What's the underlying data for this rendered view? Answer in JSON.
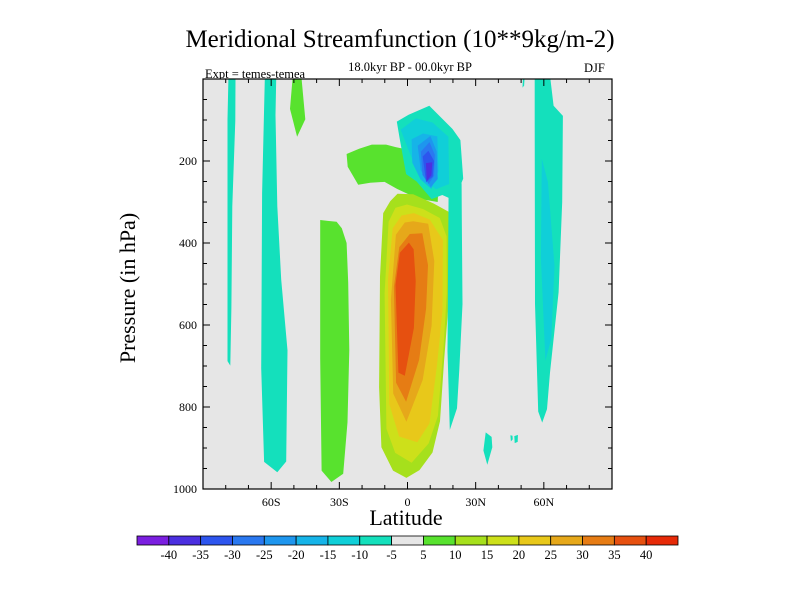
{
  "title": "Meridional Streamfunction (10**9kg/m-2)",
  "subtitle": "18.0kyr BP - 00.0kyr BP",
  "experiment_label": "Expt = temes-temea",
  "season": "DJF",
  "chart_data": {
    "type": "heatmap",
    "title": "Meridional Streamfunction (10**9kg/m-2)",
    "xlabel": "Latitude",
    "ylabel": "Pressure (in hPa)",
    "xlim": [
      -90,
      90
    ],
    "ylim": [
      1000,
      0
    ],
    "xticks": [
      {
        "value": -60,
        "label": "60S"
      },
      {
        "value": -30,
        "label": "30S"
      },
      {
        "value": 0,
        "label": "0"
      },
      {
        "value": 30,
        "label": "30N"
      },
      {
        "value": 60,
        "label": "60N"
      }
    ],
    "yticks": [
      {
        "value": 200,
        "label": "200"
      },
      {
        "value": 400,
        "label": "400"
      },
      {
        "value": 600,
        "label": "600"
      },
      {
        "value": 800,
        "label": "800"
      },
      {
        "value": 1000,
        "label": "1000"
      }
    ],
    "background_color": "#e6e6e6",
    "colorbar": {
      "labels": [
        "-40",
        "-35",
        "-30",
        "-25",
        "-20",
        "-15",
        "-10",
        "-5",
        "5",
        "10",
        "15",
        "20",
        "25",
        "30",
        "35",
        "40"
      ],
      "colors": [
        "#7b1fe0",
        "#4b2fe0",
        "#2d55ee",
        "#2a78f0",
        "#1e96ee",
        "#16b4e8",
        "#10cfd8",
        "#14e0bc",
        "#e6e6e6",
        "#58e22e",
        "#a6e01c",
        "#cde01a",
        "#e8c81a",
        "#e6a81a",
        "#e67c14",
        "#e65010",
        "#e62a08"
      ]
    },
    "regions": [
      {
        "name": "sh-polar-thin-band",
        "level": -5,
        "lat": [
          -78.8,
          -75.7,
          -75.8,
          -77.1,
          -77.5,
          -78.0,
          -79.2,
          -79.2
        ],
        "p": [
          0,
          0,
          102,
          310,
          557,
          699,
          688,
          98
        ]
      },
      {
        "name": "sh-highlat-band",
        "level": -5,
        "lat": [
          -62.8,
          -57.8,
          -58.1,
          -57.3,
          -55.6,
          -52.8,
          -53.4,
          -57.3,
          -63.1,
          -64.4,
          -64.0
        ],
        "p": [
          0,
          0,
          88,
          310,
          489,
          662,
          933,
          959,
          934,
          705,
          278
        ]
      },
      {
        "name": "sh-highlat-upper-streak",
        "level": 5,
        "lat": [
          -50.6,
          -46.6,
          -45.0,
          -48.6,
          -51.7
        ],
        "p": [
          0,
          0,
          98,
          141,
          73
        ]
      },
      {
        "name": "sh-subtropical-band",
        "level": 5,
        "lat": [
          -38.4,
          -35.1,
          -31.2,
          -28.9,
          -26.8,
          -26.1,
          -25.6,
          -26.4,
          -28.3,
          -33.5,
          -37.8,
          -38.4
        ],
        "p": [
          344,
          346,
          348,
          364,
          400,
          496,
          661,
          837,
          963,
          983,
          955,
          683
        ]
      },
      {
        "name": "upper-troposphere-lobe",
        "level": 5,
        "lat": [
          -26.8,
          -21.3,
          -15.7,
          -9.4,
          -5.2,
          -1.0,
          4.7,
          11.7,
          14.0,
          13.3,
          7.8,
          0.8,
          -4.6,
          -10.1,
          -16.4,
          -21.7,
          -26.3
        ],
        "p": [
          183,
          170,
          160,
          160,
          166,
          171,
          172,
          180,
          216,
          300,
          295,
          282,
          268,
          251,
          253,
          258,
          214
        ]
      },
      {
        "name": "equatorial-cell",
        "level": 10,
        "lat": [
          -10.7,
          -7.6,
          -4.4,
          2.5,
          11.6,
          18.5,
          20.5,
          20.4,
          17.9,
          16.1,
          14.3,
          11.0,
          5.3,
          -0.5,
          -6.4,
          -11.5,
          -12.5,
          -12.1
        ],
        "p": [
          327,
          298,
          280,
          281,
          304,
          325,
          358,
          433,
          560,
          686,
          835,
          911,
          954,
          973,
          955,
          898,
          752,
          482
        ]
      },
      {
        "name": "equatorial-cell",
        "level": 15,
        "lat": [
          -8.3,
          -5.3,
          -0.2,
          6.8,
          14.2,
          17.2,
          17.3,
          15.9,
          13.4,
          9.3,
          1.8,
          -5.4,
          -9.3,
          -10.1
        ],
        "p": [
          348,
          314,
          306,
          317,
          339,
          384,
          521,
          652,
          822,
          889,
          936,
          912,
          853,
          522
        ]
      },
      {
        "name": "equatorial-cell",
        "level": 20,
        "lat": [
          -6.5,
          -2.6,
          2.8,
          9.8,
          15.6,
          15.4,
          13.0,
          9.7,
          4.3,
          -3.7,
          -8.0,
          -8.6
        ],
        "p": [
          364,
          333,
          327,
          343,
          393,
          565,
          698,
          840,
          886,
          872,
          793,
          488
        ]
      },
      {
        "name": "equatorial-cell",
        "level": 25,
        "lat": [
          -5.1,
          -1.2,
          2.5,
          9.1,
          11.8,
          10.6,
          6.7,
          -0.5,
          -6.3,
          -7.3
        ],
        "p": [
          380,
          350,
          347,
          353,
          444,
          602,
          734,
          836,
          767,
          538
        ]
      },
      {
        "name": "equatorial-cell",
        "level": 30,
        "lat": [
          -3.6,
          1.0,
          6.5,
          9.0,
          8.2,
          5.1,
          -0.6,
          -5.0,
          -6.0
        ],
        "p": [
          410,
          378,
          376,
          454,
          560,
          685,
          787,
          741,
          507
        ]
      },
      {
        "name": "equatorial-cell",
        "level": 35,
        "lat": [
          -3.4,
          0.6,
          2.7,
          3.6,
          2.8,
          -1.2,
          -4.0,
          -5.3
        ],
        "p": [
          424,
          399,
          415,
          493,
          607,
          724,
          716,
          502
        ]
      },
      {
        "name": "nh-upper-negative-cell",
        "level": -5,
        "lat": [
          -4.7,
          0.5,
          9.6,
          19.8,
          23.3,
          24.5,
          20.6,
          15.3,
          10.6,
          4.0,
          -0.6,
          -3.5
        ],
        "p": [
          104,
          87,
          65,
          122,
          149,
          243,
          296,
          283,
          293,
          250,
          232,
          143
        ]
      },
      {
        "name": "nh-upper-negative-cell",
        "level": -10,
        "lat": [
          -3.0,
          3.6,
          11.0,
          18.0,
          18.3,
          12.5,
          5.0,
          0.8
        ],
        "p": [
          124,
          96,
          106,
          141,
          256,
          269,
          234,
          178
        ]
      },
      {
        "name": "nh-upper-negative-cell",
        "level": -15,
        "lat": [
          1.8,
          6.8,
          13.1,
          13.6,
          10.5,
          5.7,
          2.1
        ],
        "p": [
          147,
          133,
          140,
          225,
          268,
          245,
          204
        ]
      },
      {
        "name": "nh-upper-negative-cell",
        "level": -20,
        "lat": [
          4.5,
          10.1,
          12.8,
          13.3,
          10.2,
          5.8
        ],
        "p": [
          163,
          139,
          176,
          244,
          264,
          222
        ]
      },
      {
        "name": "nh-upper-negative-cell",
        "level": -25,
        "lat": [
          5.9,
          9.7,
          12.0,
          11.7,
          9.3,
          6.6
        ],
        "p": [
          177,
          154,
          185,
          236,
          256,
          234
        ]
      },
      {
        "name": "nh-upper-negative-cell",
        "level": -30,
        "lat": [
          6.7,
          9.2,
          11.7,
          11.1,
          8.2
        ],
        "p": [
          189,
          175,
          200,
          238,
          252
        ]
      },
      {
        "name": "nh-upper-negative-cell",
        "level": -35,
        "lat": [
          8.1,
          10.9,
          10.5,
          8.5
        ],
        "p": [
          205,
          203,
          235,
          248
        ]
      },
      {
        "name": "nh-subtropical-band",
        "level": -5,
        "lat": [
          18.1,
          23.8,
          23.9,
          24.2,
          22.8,
          21.8,
          18.6,
          17.6
        ],
        "p": [
          268,
          254,
          338,
          549,
          709,
          803,
          856,
          664
        ]
      },
      {
        "name": "nh-small-patch",
        "level": -5,
        "lat": [
          34.4,
          37.0,
          37.3,
          35.1,
          33.4
        ],
        "p": [
          862,
          873,
          898,
          941,
          906
        ]
      },
      {
        "name": "nh-small-patch",
        "level": -5,
        "lat": [
          45.3,
          46.2,
          46.3,
          45.5
        ],
        "p": [
          869,
          870,
          879,
          884
        ]
      },
      {
        "name": "nh-small-patch",
        "level": -5,
        "lat": [
          47.0,
          48.6,
          48.5,
          47.2
        ],
        "p": [
          871,
          868,
          885,
          888
        ]
      },
      {
        "name": "nh-highlat-band",
        "level": -5,
        "lat": [
          56.0,
          62.9,
          64.3,
          68.4,
          68.1,
          66.5,
          62.7,
          61.4,
          59.3,
          57.5,
          56.1,
          56.0
        ],
        "p": [
          0,
          0,
          65,
          90,
          300,
          520,
          716,
          805,
          838,
          811,
          548,
          99
        ]
      },
      {
        "name": "nh-highlat-band",
        "level": -10,
        "lat": [
          59.1,
          61.8,
          64.7,
          63.3,
          60.7,
          58.7
        ],
        "p": [
          194,
          251,
          456,
          633,
          687,
          437
        ]
      },
      {
        "name": "nh-polar-thin-band",
        "level": -5,
        "lat": [
          50.8,
          51.5,
          51.3,
          50.6
        ],
        "p": [
          0,
          0,
          16,
          21
        ]
      }
    ]
  }
}
